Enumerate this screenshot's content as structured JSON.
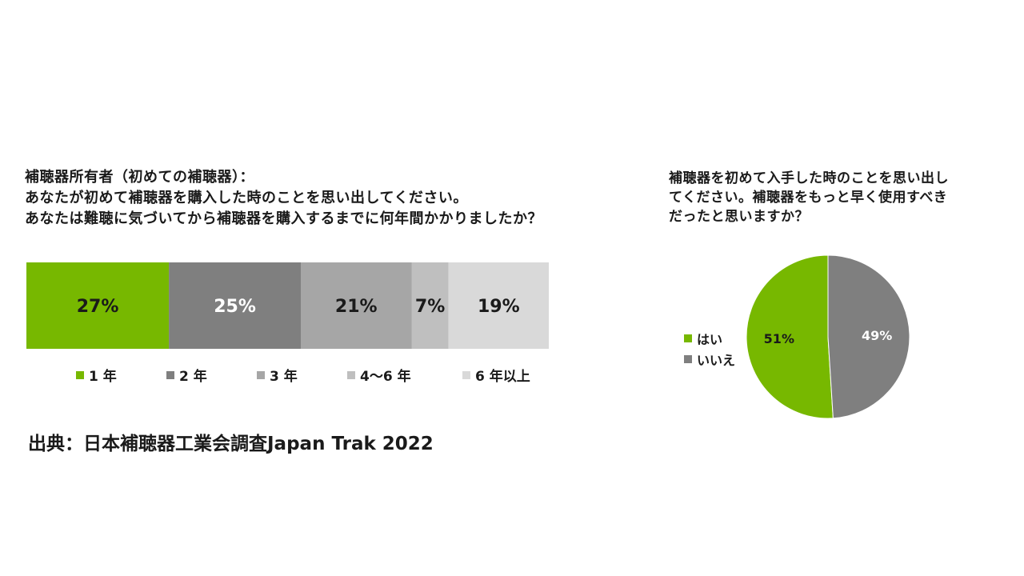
{
  "bar_chart": {
    "title_lines": [
      "補聴器所有者（初めての補聴器）：",
      "あなたが初めて補聴器を購入した時のことを思い出してください。",
      "あなたは難聴に気づいてから補聴器を購入するまでに何年間かかりましたか？"
    ]
  },
  "pie_chart": {
    "title_lines": [
      "補聴器を初めて入手した時のことを思い出し",
      "てください。補聴器をもっと早く使用すべき",
      "だったと思いますか？"
    ]
  },
  "source": "出典：日本補聴器工業会調査Japan Trak 2022",
  "chart_data": [
    {
      "type": "bar",
      "orientation": "horizontal-stacked-100",
      "categories": [
        "1 年",
        "2 年",
        "3 年",
        "4～6 年",
        "6 年以上"
      ],
      "values": [
        27,
        25,
        21,
        7,
        19
      ],
      "value_labels": [
        "27%",
        "25%",
        "21%",
        "7%",
        "19%"
      ],
      "colors": [
        "#77b800",
        "#7f7f7f",
        "#a6a6a6",
        "#bfbfbf",
        "#d9d9d9"
      ],
      "label_colors": [
        "#1a1a1a",
        "#ffffff",
        "#1a1a1a",
        "#1a1a1a",
        "#1a1a1a"
      ],
      "legend_position": "bottom"
    },
    {
      "type": "pie",
      "categories": [
        "はい",
        "いいえ"
      ],
      "values": [
        51,
        49
      ],
      "value_labels": [
        "51%",
        "49%"
      ],
      "colors": [
        "#77b800",
        "#7f7f7f"
      ],
      "label_colors": [
        "#1a1a1a",
        "#ffffff"
      ],
      "legend_position": "left"
    }
  ]
}
